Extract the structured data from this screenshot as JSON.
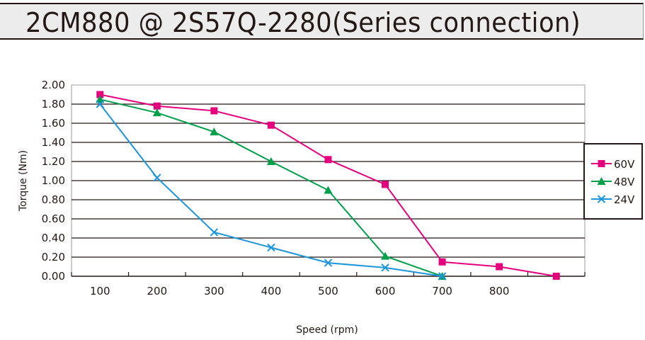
{
  "header": {
    "title": "2CM880 @ 2S57Q-2280(Series connection)"
  },
  "colors": {
    "60V": "#e5007e",
    "48V": "#00a04b",
    "24V": "#1d95db",
    "grid": "#231815",
    "header_bg": "#ececec"
  },
  "chart_data": {
    "type": "line",
    "title": "2CM880 @ 2S57Q-2280(Series connection)",
    "xlabel": "Speed (rpm)",
    "ylabel": "Torque (Nm)",
    "categories": [
      "100",
      "200",
      "300",
      "400",
      "500",
      "600",
      "700",
      "800",
      ""
    ],
    "x_ticks": [
      "100",
      "200",
      "300",
      "400",
      "500",
      "600",
      "700",
      "800"
    ],
    "y_ticks": [
      "0.00",
      "0.20",
      "0.40",
      "0.60",
      "0.80",
      "1.00",
      "1.20",
      "1.40",
      "1.60",
      "1.80",
      "2.00"
    ],
    "ylim": [
      0,
      2.0
    ],
    "grid": true,
    "legend_position": "right",
    "series": [
      {
        "name": "60V",
        "marker": "square",
        "color": "#e5007e",
        "x": [
          100,
          200,
          300,
          400,
          500,
          600,
          700,
          800,
          900
        ],
        "values": [
          1.9,
          1.78,
          1.73,
          1.58,
          1.22,
          0.96,
          0.15,
          0.1,
          0.0
        ]
      },
      {
        "name": "48V",
        "marker": "triangle",
        "color": "#00a04b",
        "x": [
          100,
          200,
          300,
          400,
          500,
          600,
          700
        ],
        "values": [
          1.85,
          1.71,
          1.51,
          1.2,
          0.9,
          0.21,
          0.0
        ]
      },
      {
        "name": "24V",
        "marker": "x",
        "color": "#1d95db",
        "x": [
          100,
          200,
          300,
          400,
          500,
          600,
          700
        ],
        "values": [
          1.8,
          1.03,
          0.46,
          0.3,
          0.14,
          0.09,
          0.0
        ]
      }
    ]
  }
}
